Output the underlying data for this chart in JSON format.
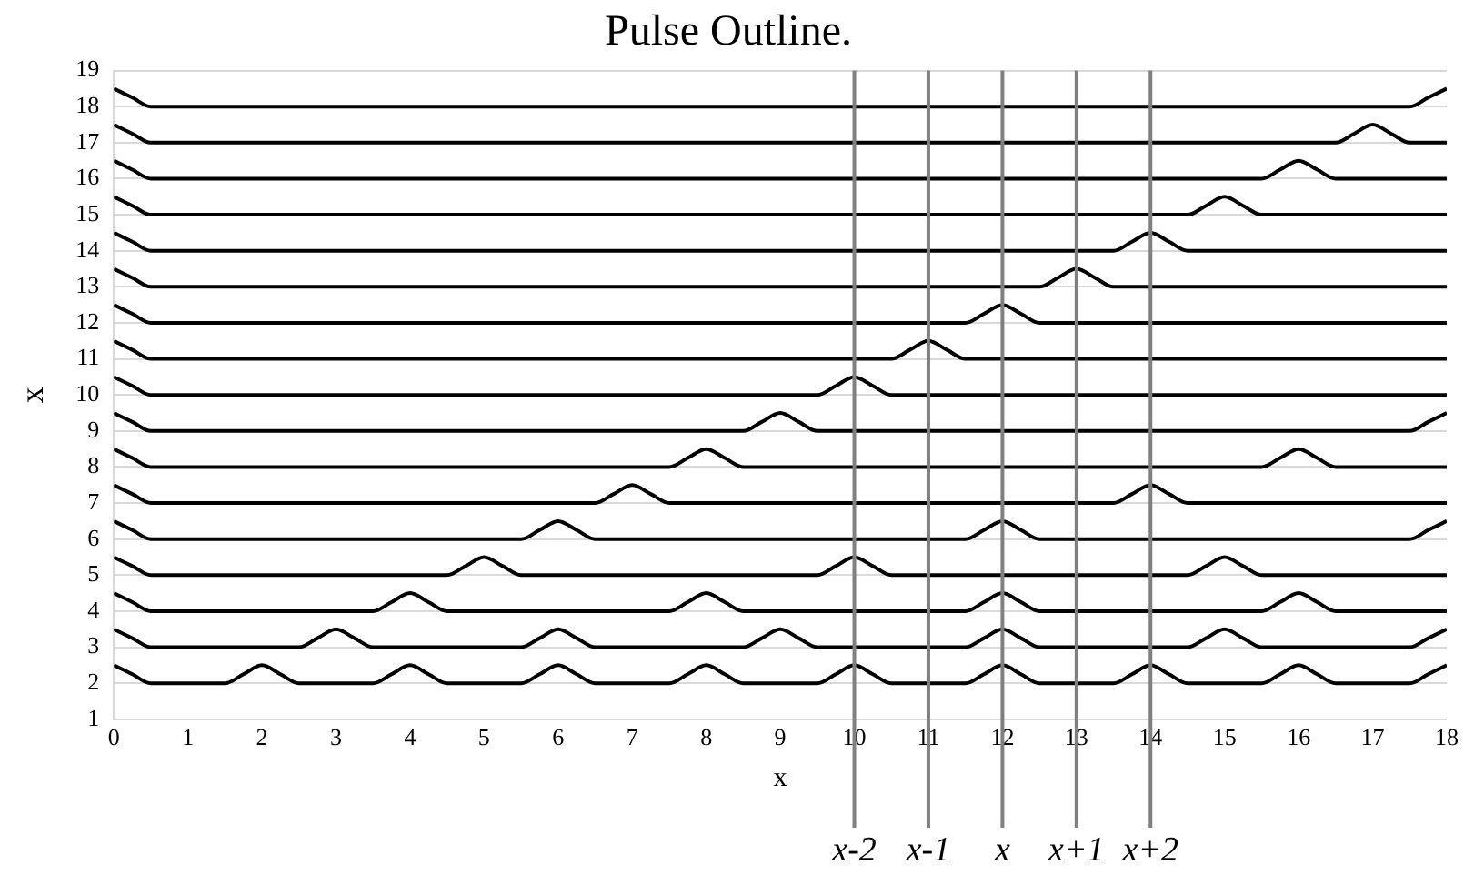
{
  "chart_data": {
    "type": "line",
    "title": "Pulse Outline.",
    "xlabel": "x",
    "ylabel": "x",
    "xlim": [
      0,
      18
    ],
    "xticks": [
      0,
      1,
      2,
      3,
      4,
      5,
      6,
      7,
      8,
      9,
      10,
      11,
      12,
      13,
      14,
      15,
      16,
      17,
      18
    ],
    "ylim": [
      1,
      19
    ],
    "yticks": [
      1,
      2,
      3,
      4,
      5,
      6,
      7,
      8,
      9,
      10,
      11,
      12,
      13,
      14,
      15,
      16,
      17,
      18,
      19
    ],
    "grid": "y",
    "ref_lines": [
      {
        "axis": "x",
        "value": 10,
        "label": "x-2",
        "color": "#808080"
      },
      {
        "axis": "x",
        "value": 11,
        "label": "x-1",
        "color": "#808080"
      },
      {
        "axis": "x",
        "value": 12,
        "label": "x",
        "color": "#808080"
      },
      {
        "axis": "x",
        "value": 13,
        "label": "x+1",
        "color": "#808080"
      },
      {
        "axis": "x",
        "value": 14,
        "label": "x+2",
        "color": "#808080"
      }
    ],
    "series": [
      {
        "color": "#000000",
        "x": [
          0,
          0.25,
          0.5,
          1.5,
          1.75,
          2,
          2.25,
          2.5,
          3.5,
          3.75,
          4,
          4.25,
          4.5,
          5.5,
          5.75,
          6,
          6.25,
          6.5,
          7.5,
          7.75,
          8,
          8.25,
          8.5,
          9.5,
          9.75,
          10,
          10.25,
          10.5,
          11.5,
          11.75,
          12,
          12.25,
          12.5,
          13.5,
          13.75,
          14,
          14.25,
          14.5,
          15.5,
          15.75,
          16,
          16.25,
          16.5,
          17.5,
          17.75,
          18
        ],
        "values": [
          2.5,
          2.25,
          2,
          2,
          2.25,
          2.5,
          2.25,
          2,
          2,
          2.25,
          2.5,
          2.25,
          2,
          2,
          2.25,
          2.5,
          2.25,
          2,
          2,
          2.25,
          2.5,
          2.25,
          2,
          2,
          2.25,
          2.5,
          2.25,
          2,
          2,
          2.25,
          2.5,
          2.25,
          2,
          2,
          2.25,
          2.5,
          2.25,
          2,
          2,
          2.25,
          2.5,
          2.25,
          2,
          2,
          2.25,
          2.5
        ]
      },
      {
        "color": "#000000",
        "x": [
          0,
          0.25,
          0.5,
          2.5,
          2.75,
          3,
          3.25,
          3.5,
          5.5,
          5.75,
          6,
          6.25,
          6.5,
          8.5,
          8.75,
          9,
          9.25,
          9.5,
          11.5,
          11.75,
          12,
          12.25,
          12.5,
          14.5,
          14.75,
          15,
          15.25,
          15.5,
          17.5,
          17.75,
          18
        ],
        "values": [
          3.5,
          3.25,
          3,
          3,
          3.25,
          3.5,
          3.25,
          3,
          3,
          3.25,
          3.5,
          3.25,
          3,
          3,
          3.25,
          3.5,
          3.25,
          3,
          3,
          3.25,
          3.5,
          3.25,
          3,
          3,
          3.25,
          3.5,
          3.25,
          3,
          3,
          3.25,
          3.5
        ]
      },
      {
        "color": "#000000",
        "x": [
          0,
          0.25,
          0.5,
          3.5,
          3.75,
          4,
          4.25,
          4.5,
          7.5,
          7.75,
          8,
          8.25,
          8.5,
          11.5,
          11.75,
          12,
          12.25,
          12.5,
          15.5,
          15.75,
          16,
          16.25,
          16.5,
          18
        ],
        "values": [
          4.5,
          4.25,
          4,
          4,
          4.25,
          4.5,
          4.25,
          4,
          4,
          4.25,
          4.5,
          4.25,
          4,
          4,
          4.25,
          4.5,
          4.25,
          4,
          4,
          4.25,
          4.5,
          4.25,
          4,
          4
        ]
      },
      {
        "color": "#000000",
        "x": [
          0,
          0.25,
          0.5,
          4.5,
          4.75,
          5,
          5.25,
          5.5,
          9.5,
          9.75,
          10,
          10.25,
          10.5,
          14.5,
          14.75,
          15,
          15.25,
          15.5,
          18
        ],
        "values": [
          5.5,
          5.25,
          5,
          5,
          5.25,
          5.5,
          5.25,
          5,
          5,
          5.25,
          5.5,
          5.25,
          5,
          5,
          5.25,
          5.5,
          5.25,
          5,
          5
        ]
      },
      {
        "color": "#000000",
        "x": [
          0,
          0.25,
          0.5,
          5.5,
          5.75,
          6,
          6.25,
          6.5,
          11.5,
          11.75,
          12,
          12.25,
          12.5,
          17.5,
          17.75,
          18
        ],
        "values": [
          6.5,
          6.25,
          6,
          6,
          6.25,
          6.5,
          6.25,
          6,
          6,
          6.25,
          6.5,
          6.25,
          6,
          6,
          6.25,
          6.5
        ]
      },
      {
        "color": "#000000",
        "x": [
          0,
          0.25,
          0.5,
          6.5,
          6.75,
          7,
          7.25,
          7.5,
          13.5,
          13.75,
          14,
          14.25,
          14.5,
          18
        ],
        "values": [
          7.5,
          7.25,
          7,
          7,
          7.25,
          7.5,
          7.25,
          7,
          7,
          7.25,
          7.5,
          7.25,
          7,
          7
        ]
      },
      {
        "color": "#000000",
        "x": [
          0,
          0.25,
          0.5,
          7.5,
          7.75,
          8,
          8.25,
          8.5,
          15.5,
          15.75,
          16,
          16.25,
          16.5,
          18
        ],
        "values": [
          8.5,
          8.25,
          8,
          8,
          8.25,
          8.5,
          8.25,
          8,
          8,
          8.25,
          8.5,
          8.25,
          8,
          8
        ]
      },
      {
        "color": "#000000",
        "x": [
          0,
          0.25,
          0.5,
          8.5,
          8.75,
          9,
          9.25,
          9.5,
          17.5,
          17.75,
          18
        ],
        "values": [
          9.5,
          9.25,
          9,
          9,
          9.25,
          9.5,
          9.25,
          9,
          9,
          9.25,
          9.5
        ]
      },
      {
        "color": "#000000",
        "x": [
          0,
          0.25,
          0.5,
          9.5,
          9.75,
          10,
          10.25,
          10.5,
          18
        ],
        "values": [
          10.5,
          10.25,
          10,
          10,
          10.25,
          10.5,
          10.25,
          10,
          10
        ]
      },
      {
        "color": "#000000",
        "x": [
          0,
          0.25,
          0.5,
          10.5,
          10.75,
          11,
          11.25,
          11.5,
          18
        ],
        "values": [
          11.5,
          11.25,
          11,
          11,
          11.25,
          11.5,
          11.25,
          11,
          11
        ]
      },
      {
        "color": "#000000",
        "x": [
          0,
          0.25,
          0.5,
          11.5,
          11.75,
          12,
          12.25,
          12.5,
          18
        ],
        "values": [
          12.5,
          12.25,
          12,
          12,
          12.25,
          12.5,
          12.25,
          12,
          12
        ]
      },
      {
        "color": "#000000",
        "x": [
          0,
          0.25,
          0.5,
          12.5,
          12.75,
          13,
          13.25,
          13.5,
          18
        ],
        "values": [
          13.5,
          13.25,
          13,
          13,
          13.25,
          13.5,
          13.25,
          13,
          13
        ]
      },
      {
        "color": "#000000",
        "x": [
          0,
          0.25,
          0.5,
          13.5,
          13.75,
          14,
          14.25,
          14.5,
          18
        ],
        "values": [
          14.5,
          14.25,
          14,
          14,
          14.25,
          14.5,
          14.25,
          14,
          14
        ]
      },
      {
        "color": "#000000",
        "x": [
          0,
          0.25,
          0.5,
          14.5,
          14.75,
          15,
          15.25,
          15.5,
          18
        ],
        "values": [
          15.5,
          15.25,
          15,
          15,
          15.25,
          15.5,
          15.25,
          15,
          15
        ]
      },
      {
        "color": "#000000",
        "x": [
          0,
          0.25,
          0.5,
          15.5,
          15.75,
          16,
          16.25,
          16.5,
          18
        ],
        "values": [
          16.5,
          16.25,
          16,
          16,
          16.25,
          16.5,
          16.25,
          16,
          16
        ]
      },
      {
        "color": "#000000",
        "x": [
          0,
          0.25,
          0.5,
          16.5,
          16.75,
          17,
          17.25,
          17.5,
          18
        ],
        "values": [
          17.5,
          17.25,
          17,
          17,
          17.25,
          17.5,
          17.25,
          17,
          17
        ]
      },
      {
        "color": "#000000",
        "x": [
          0,
          0.25,
          0.5,
          17.5,
          17.75,
          18
        ],
        "values": [
          18.5,
          18.25,
          18,
          18,
          18.25,
          18.5
        ]
      }
    ]
  }
}
